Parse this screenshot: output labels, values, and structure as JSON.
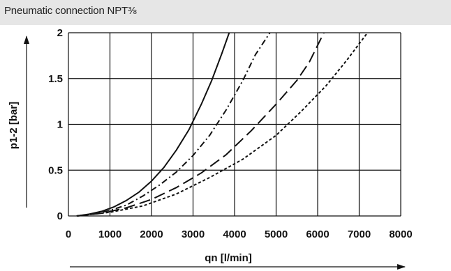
{
  "header": {
    "title": "Pneumatic connection NPT⅜"
  },
  "chart_data": {
    "type": "line",
    "title": "",
    "xlabel": "qn [l/min]",
    "ylabel": "p1-2 [bar]",
    "xlim": [
      0,
      8000
    ],
    "ylim": [
      0,
      2
    ],
    "xticks": [
      "0",
      "1000",
      "2000",
      "3000",
      "4000",
      "5000",
      "6000",
      "7000",
      "8000"
    ],
    "yticks": [
      "0",
      "0.5",
      "1",
      "1.5",
      "2"
    ],
    "grid": true,
    "legend": "none",
    "series": [
      {
        "style": "solid",
        "x": [
          200,
          500,
          800,
          1100,
          1400,
          1700,
          2000,
          2300,
          2600,
          2900,
          3200,
          3450,
          3700,
          3870
        ],
        "y": [
          0.0,
          0.02,
          0.05,
          0.1,
          0.17,
          0.26,
          0.38,
          0.53,
          0.72,
          0.94,
          1.22,
          1.48,
          1.78,
          2.0
        ]
      },
      {
        "style": "dash-dot",
        "x": [
          200,
          600,
          1000,
          1400,
          1800,
          2200,
          2600,
          3000,
          3400,
          3800,
          4200,
          4500,
          4850
        ],
        "y": [
          0.0,
          0.02,
          0.06,
          0.12,
          0.22,
          0.34,
          0.48,
          0.66,
          0.88,
          1.16,
          1.48,
          1.76,
          2.0
        ]
      },
      {
        "style": "long-dash",
        "x": [
          200,
          800,
          1400,
          2000,
          2600,
          3200,
          3800,
          4400,
          5000,
          5500,
          5800,
          6150
        ],
        "y": [
          0.0,
          0.03,
          0.09,
          0.18,
          0.31,
          0.47,
          0.67,
          0.93,
          1.22,
          1.48,
          1.68,
          2.0
        ]
      },
      {
        "style": "short-dash",
        "x": [
          200,
          1000,
          1800,
          2600,
          3400,
          4200,
          5000,
          5600,
          6200,
          6700,
          7200
        ],
        "y": [
          0.0,
          0.04,
          0.11,
          0.24,
          0.42,
          0.62,
          0.88,
          1.14,
          1.42,
          1.7,
          2.0
        ]
      }
    ]
  }
}
